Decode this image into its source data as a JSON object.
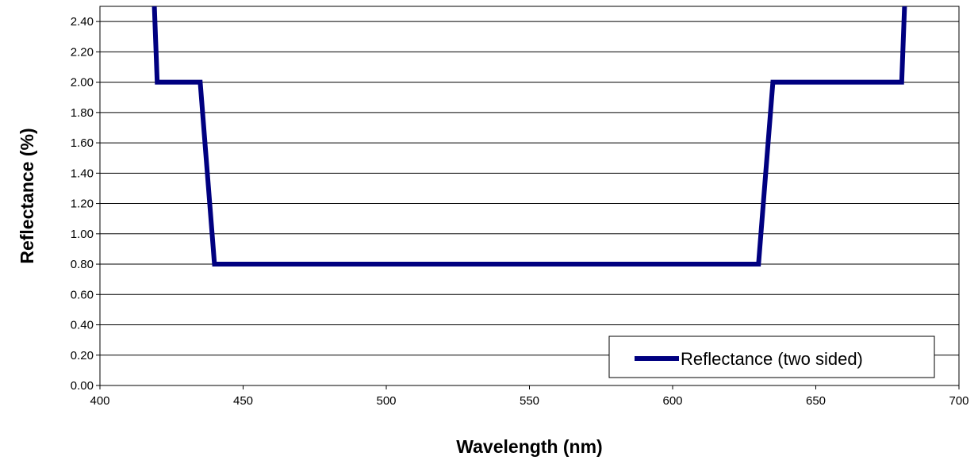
{
  "chart_data": {
    "type": "line",
    "xlabel": "Wavelength (nm)",
    "ylabel": "Reflectance (%)",
    "xlim": [
      400,
      700
    ],
    "ylim": [
      0,
      2.5
    ],
    "x_ticks": [
      400,
      450,
      500,
      550,
      600,
      650,
      700
    ],
    "y_ticks": [
      0,
      0.2,
      0.4,
      0.6,
      0.8,
      1.0,
      1.2,
      1.4,
      1.6,
      1.8,
      2.0,
      2.2,
      2.4
    ],
    "y_tick_labels": [
      "0.00",
      "0.20",
      "0.40",
      "0.60",
      "0.80",
      "1.00",
      "1.20",
      "1.40",
      "1.60",
      "1.80",
      "2.00",
      "2.20",
      "2.40"
    ],
    "x_tick_labels": [
      "400",
      "450",
      "500",
      "550",
      "600",
      "650",
      "700"
    ],
    "grid": "horizontal",
    "legend_position": "bottom-right",
    "series": [
      {
        "name": "Reflectance (two sided)",
        "color": "#000080",
        "x": [
          419,
          420,
          435,
          440,
          630,
          635,
          680,
          681
        ],
        "y": [
          2.5,
          2.0,
          2.0,
          0.8,
          0.8,
          2.0,
          2.0,
          2.5
        ]
      }
    ]
  }
}
